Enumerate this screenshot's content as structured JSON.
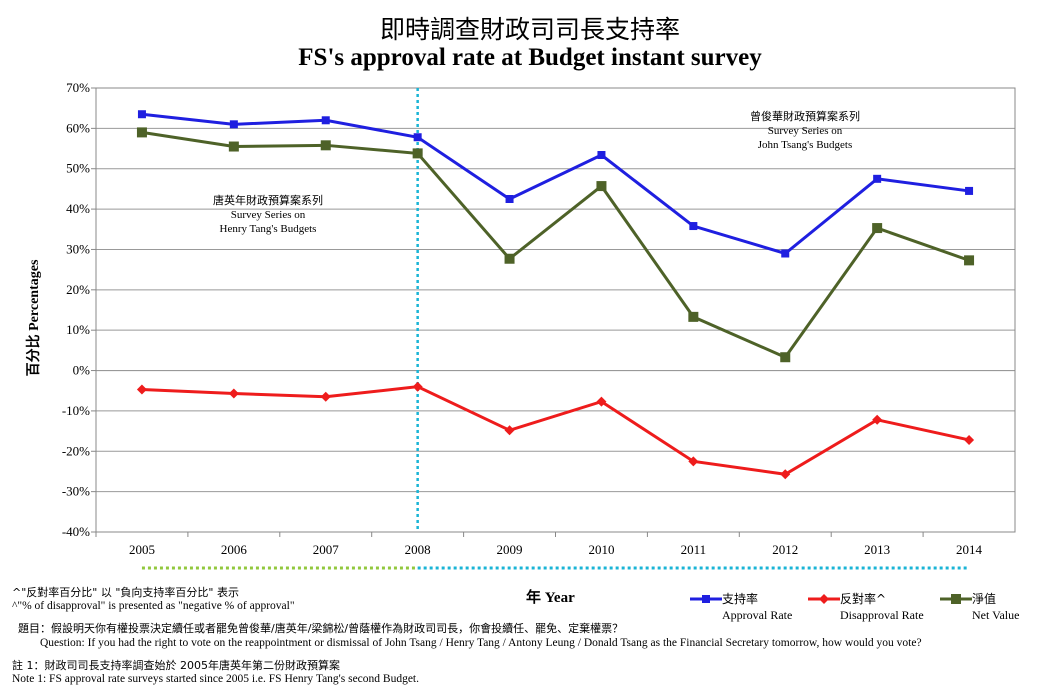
{
  "title_zh": "即時調查財政司司長支持率",
  "title_en": "FS's approval rate at Budget instant survey",
  "chart_data": {
    "type": "line",
    "categories": [
      "2005",
      "2006",
      "2007",
      "2008",
      "2009",
      "2010",
      "2011",
      "2012",
      "2013",
      "2014"
    ],
    "ylabel": "百分比 Percentages",
    "xlabel": "年 Year",
    "ylim": [
      -40,
      70
    ],
    "yticks": [
      "70%",
      "60%",
      "50%",
      "40%",
      "30%",
      "20%",
      "10%",
      "0%",
      "-10%",
      "-20%",
      "-30%",
      "-40%"
    ],
    "series": [
      {
        "name": "支持率 Approval Rate",
        "name_zh": "支持率",
        "name_en": "Approval Rate",
        "color": "#1f1fe0",
        "values": [
          63.5,
          61,
          62,
          57.8,
          42.5,
          53.4,
          35.8,
          29,
          47.5,
          44.5
        ]
      },
      {
        "name": "反對率^ Disapproval Rate",
        "name_zh": "反對率^",
        "name_en": "Disapproval Rate",
        "color": "#ee1c1c",
        "values": [
          -4.7,
          -5.7,
          -6.5,
          -4,
          -14.8,
          -7.7,
          -22.5,
          -25.7,
          -12.2,
          -17.2
        ]
      },
      {
        "name": "淨值 Net Value",
        "name_zh": "淨值",
        "name_en": "Net Value",
        "color": "#4e6228",
        "values": [
          59,
          55.5,
          55.8,
          53.8,
          27.7,
          45.7,
          13.3,
          3.3,
          35.3,
          27.3
        ]
      }
    ],
    "annotations": [
      {
        "zh": "唐英年財政預算案系列",
        "en1": "Survey Series on",
        "en2": "Henry Tang's Budgets"
      },
      {
        "zh": "曾俊華財政預算案系列",
        "en1": "Survey Series on",
        "en2": "John Tsang's Budgets"
      }
    ],
    "divider_at": "2008",
    "grid": true,
    "legend": "bottom-right"
  },
  "notes": {
    "footnote_zh": "^\"反對率百分比\" 以 \"負向支持率百分比\" 表示",
    "footnote_en": "^\"% of disapproval\" is presented as \"negative % of approval\"",
    "question_zh": "題目：假設明天你有權投票決定續任或者罷免曾俊華/唐英年/梁錦松/曾蔭權作為財政司司長，你會投續任、罷免、定棄權票？",
    "question_en": "Question: If you had the right  to vote on the reappointment or dismissal of John Tsang / Henry Tang / Antony Leung / Donald Tsang as the Financial Secretary tomorrow, how would you vote?",
    "note1_zh": "註 1：財政司司長支持率調查始於 2005年唐英年第二份財政預算案",
    "note1_en": "Note 1: FS approval rate surveys started since 2005 i.e. FS Henry Tang's second Budget."
  }
}
